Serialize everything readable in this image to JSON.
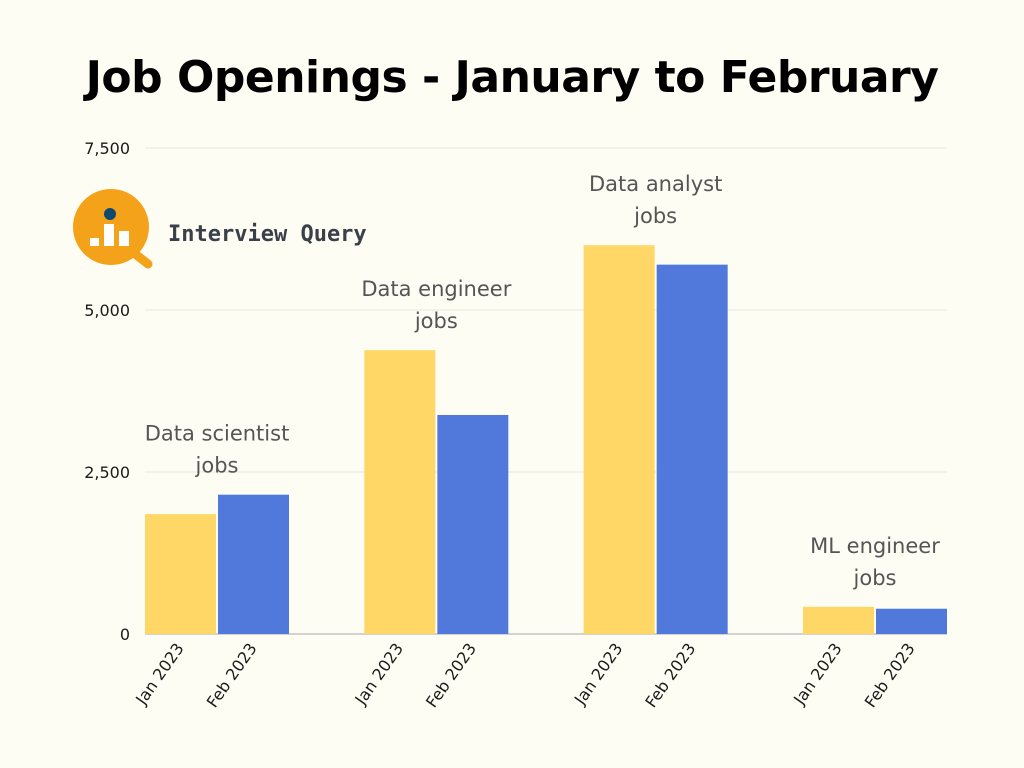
{
  "title": "Job Openings - January to February",
  "brand": {
    "name": "Interview Query",
    "icon": "interview-query-logo-icon",
    "colors": {
      "circle": "#f5a21b",
      "dot": "#0e4a6e",
      "bars": "#ffffff"
    }
  },
  "chart_data": {
    "type": "bar",
    "title": "Job Openings - January to February",
    "xlabel": "",
    "ylabel": "",
    "ylim": [
      0,
      7500
    ],
    "yticks": [
      0,
      2500,
      5000,
      7500
    ],
    "ytick_labels": [
      "0",
      "2,500",
      "5,000",
      "7,500"
    ],
    "grid": true,
    "categories": [
      "Data scientist jobs",
      "Data engineer jobs",
      "Data analyst jobs",
      "ML engineer jobs"
    ],
    "category_labels": [
      [
        "Data scientist",
        "jobs"
      ],
      [
        "Data engineer",
        "jobs"
      ],
      [
        "Data analyst",
        "jobs"
      ],
      [
        "ML engineer",
        "jobs"
      ]
    ],
    "series": [
      {
        "name": "Jan 2023",
        "color": "#fed766",
        "values": [
          1850,
          4380,
          6000,
          420
        ]
      },
      {
        "name": "Feb 2023",
        "color": "#5079db",
        "values": [
          2150,
          3380,
          5700,
          390
        ]
      }
    ]
  }
}
